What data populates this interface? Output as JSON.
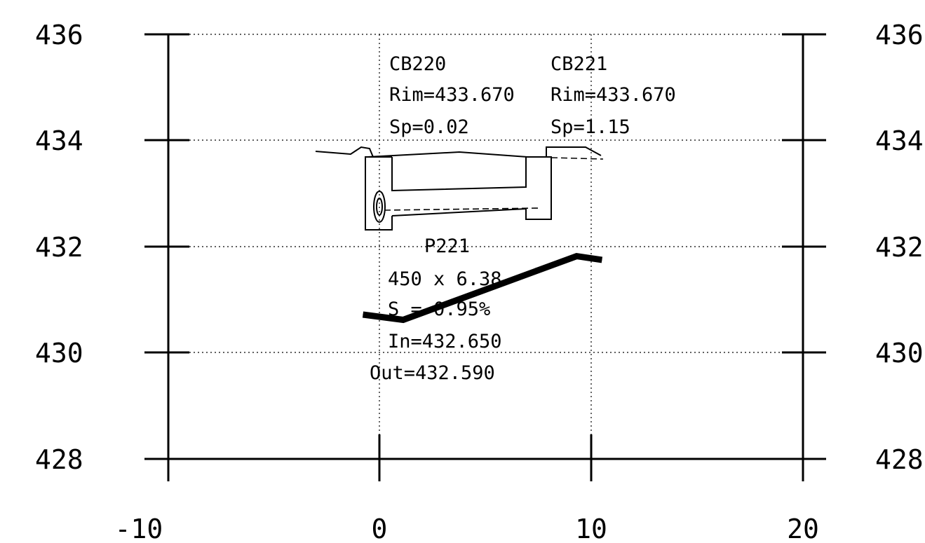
{
  "chart_data": {
    "type": "line",
    "xlim": [
      -10,
      20
    ],
    "ylim": [
      428,
      436
    ],
    "x_ticks": [
      "-10",
      "0",
      "10",
      "20"
    ],
    "y_ticks": [
      "428",
      "430",
      "432",
      "434",
      "436"
    ],
    "grid": true,
    "structures": [
      {
        "name": "CB220",
        "rim": "Rim=433.670",
        "sp": "Sp=0.02",
        "station": 0
      },
      {
        "name": "CB221",
        "rim": "Rim=433.670",
        "sp": "Sp=1.15",
        "station": 10
      }
    ],
    "pipe": {
      "name": "P221",
      "size": "450 x 6.38",
      "slope": "S = 0.95%",
      "invert_in": "In=432.650",
      "invert_out": "Out=432.590",
      "series": [
        {
          "x": [
            -0.8,
            1.1,
            9.3,
            10.5
          ],
          "y": [
            430.72,
            430.62,
            431.82,
            431.75
          ]
        }
      ]
    }
  }
}
